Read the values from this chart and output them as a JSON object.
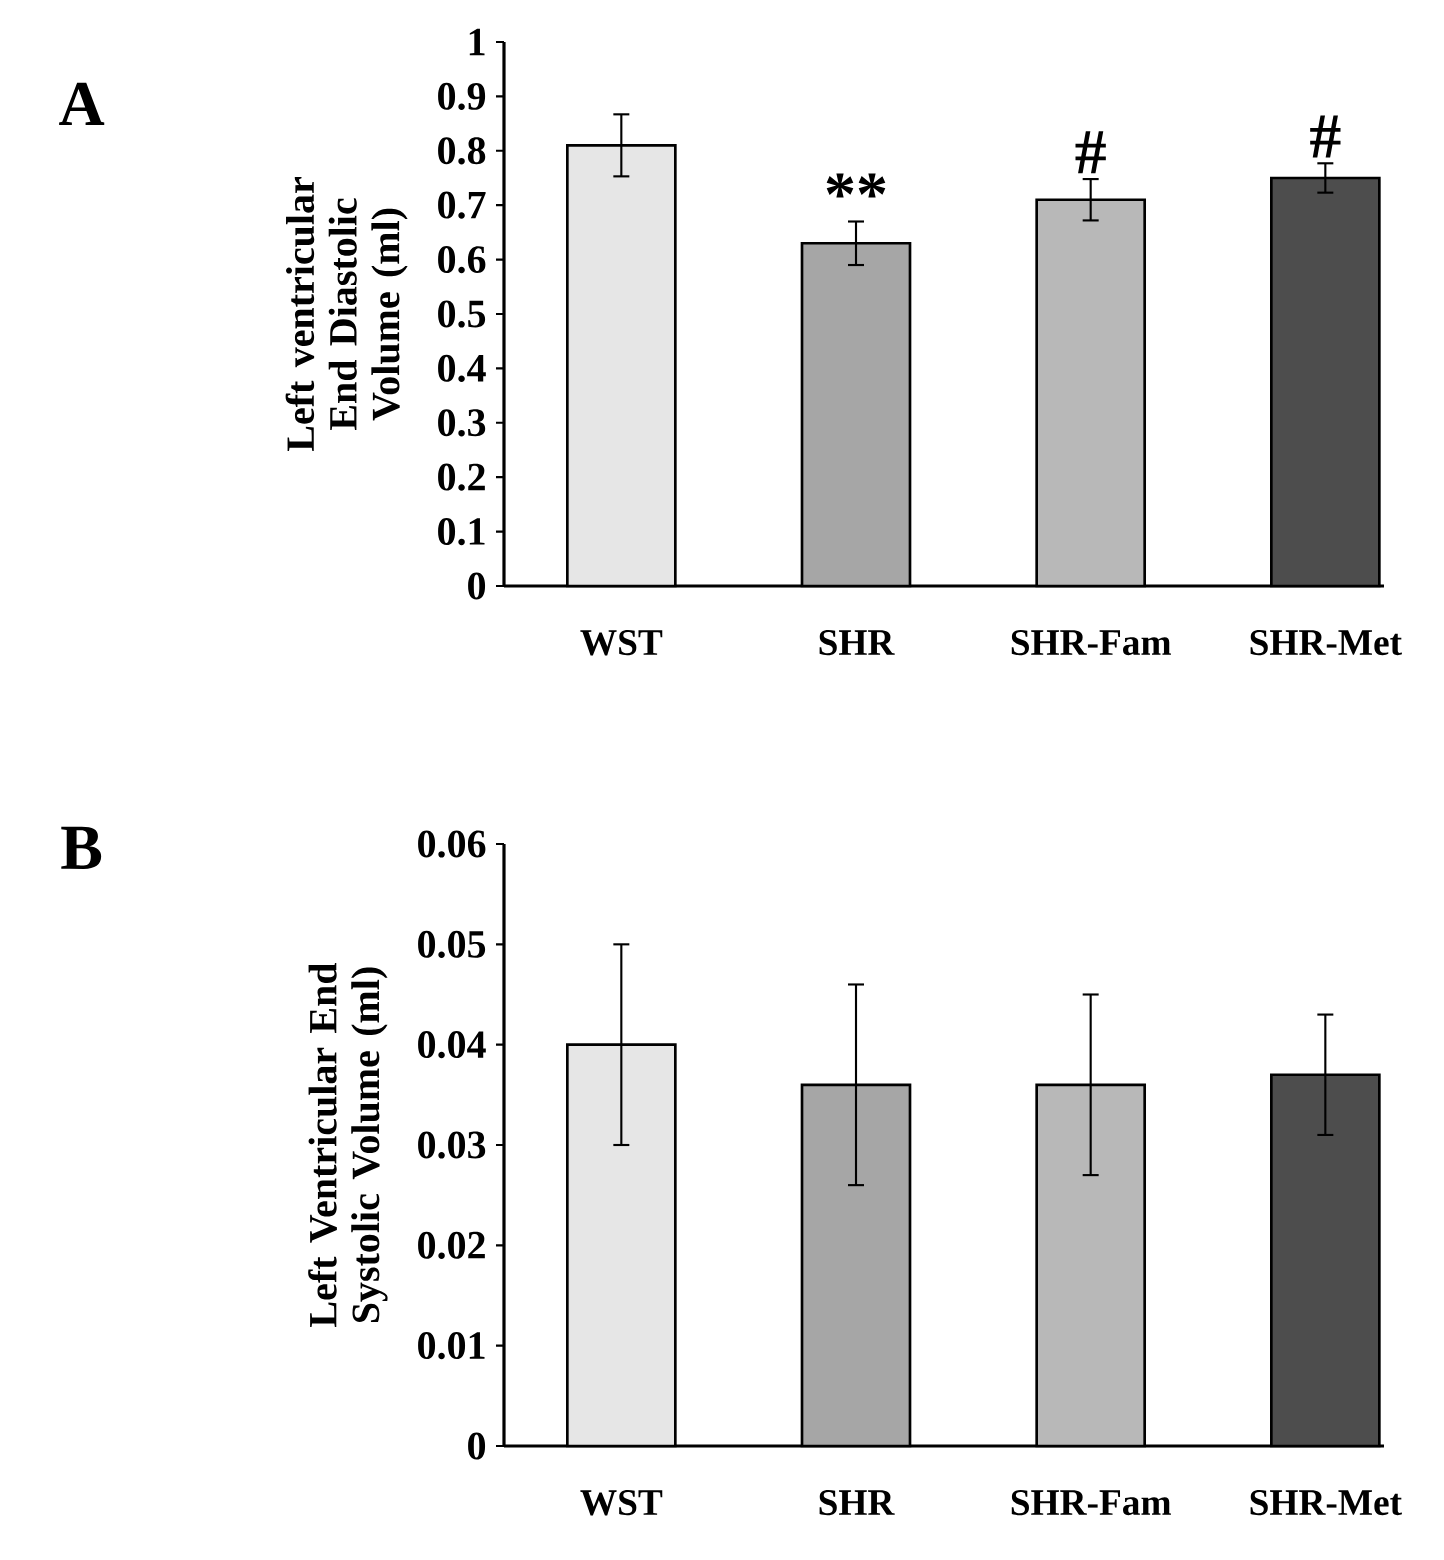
{
  "chart_data": [
    {
      "type": "bar",
      "title": "A",
      "ylabel": "Left ventricular End Diastolic Volume (ml)",
      "categories": [
        "WST",
        "SHR",
        "SHR-Fam",
        "SHR-Met"
      ],
      "values": [
        0.81,
        0.63,
        0.71,
        0.75
      ],
      "errors": [
        0.057,
        0.04,
        0.038,
        0.027
      ],
      "colors": [
        "#e6e6e6",
        "#a6a6a6",
        "#b8b8b8",
        "#4d4d4d"
      ],
      "ylim": [
        0,
        1
      ],
      "yticks": [
        0,
        0.1,
        0.2,
        0.3,
        0.4,
        0.5,
        0.6,
        0.7,
        0.8,
        0.9,
        1
      ],
      "annotations": [
        {
          "text": "**",
          "x": "SHR",
          "y": 0.67
        },
        {
          "text": "#",
          "x": "SHR-Fam",
          "y": 0.748
        },
        {
          "text": "#",
          "x": "SHR-Met",
          "y": 0.777
        }
      ]
    },
    {
      "type": "bar",
      "title": "B",
      "ylabel": "Left Ventricular End Systolic Volume (ml)",
      "categories": [
        "WST",
        "SHR",
        "SHR-Fam",
        "SHR-Met"
      ],
      "values": [
        0.04,
        0.036,
        0.036,
        0.037
      ],
      "errors": [
        0.01,
        0.01,
        0.009,
        0.006
      ],
      "colors": [
        "#e6e6e6",
        "#a6a6a6",
        "#b8b8b8",
        "#4d4d4d"
      ],
      "ylim": [
        0,
        0.06
      ],
      "yticks": [
        0,
        0.01,
        0.02,
        0.03,
        0.04,
        0.05,
        0.06
      ]
    }
  ]
}
